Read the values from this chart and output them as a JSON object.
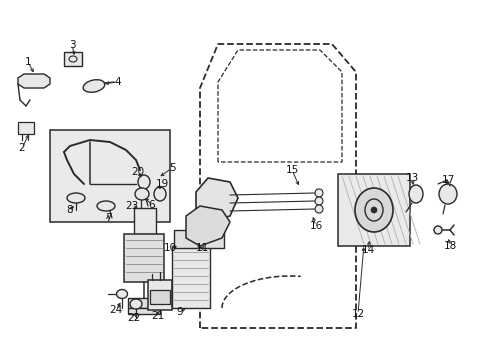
{
  "bg_color": "#ffffff",
  "fig_width": 4.89,
  "fig_height": 3.6,
  "dpi": 100,
  "line_color": "#2a2a2a",
  "part_color": "#2a2a2a",
  "fill_light": "#e8e8e8",
  "fill_mid": "#d0d0d0",
  "box_fill": "#e4e4e4",
  "label_fs": 7.5,
  "label_color": "#111111",
  "label_defs": [
    [
      "1",
      28,
      62,
      35,
      75
    ],
    [
      "2",
      22,
      148,
      30,
      132
    ],
    [
      "3",
      72,
      45,
      75,
      58
    ],
    [
      "4",
      118,
      82,
      102,
      84
    ],
    [
      "5",
      172,
      168,
      158,
      178
    ],
    [
      "6",
      152,
      205,
      143,
      196
    ],
    [
      "7",
      108,
      218,
      108,
      212
    ],
    [
      "8",
      70,
      210,
      76,
      204
    ],
    [
      "9",
      180,
      312,
      188,
      306
    ],
    [
      "10",
      170,
      248,
      180,
      246
    ],
    [
      "11",
      202,
      248,
      204,
      246
    ],
    [
      "12",
      358,
      314,
      364,
      244
    ],
    [
      "13",
      412,
      178,
      414,
      188
    ],
    [
      "14",
      368,
      250,
      370,
      238
    ],
    [
      "15",
      292,
      170,
      300,
      188
    ],
    [
      "16",
      316,
      226,
      312,
      214
    ],
    [
      "17",
      448,
      180,
      446,
      188
    ],
    [
      "18",
      450,
      246,
      448,
      236
    ],
    [
      "19",
      162,
      184,
      158,
      192
    ],
    [
      "20",
      138,
      172,
      143,
      180
    ],
    [
      "21",
      158,
      316,
      158,
      308
    ],
    [
      "22",
      134,
      318,
      136,
      310
    ],
    [
      "23",
      132,
      206,
      140,
      210
    ],
    [
      "24",
      116,
      310,
      122,
      300
    ]
  ]
}
